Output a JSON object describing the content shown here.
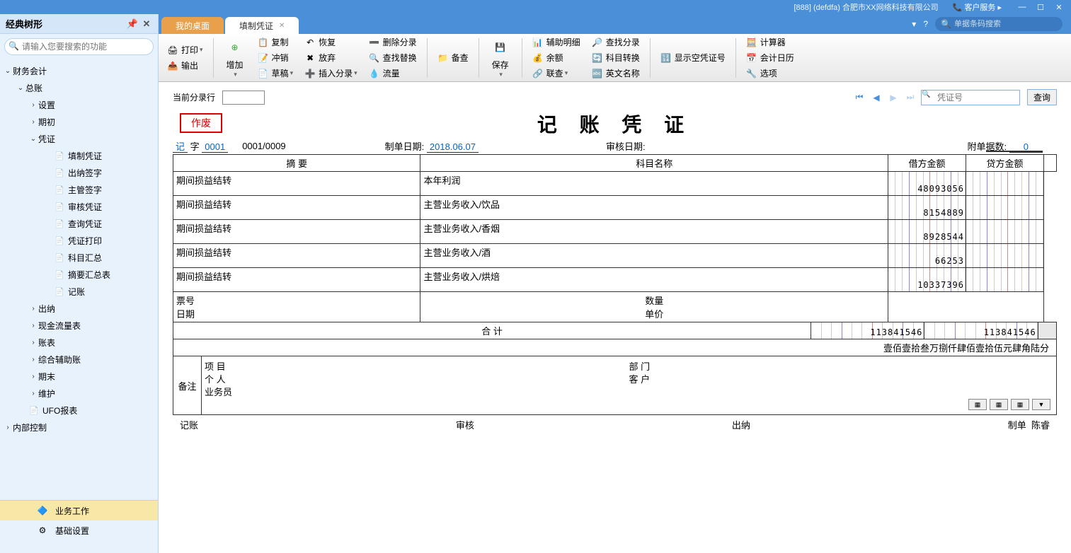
{
  "titlebar": {
    "company": "[888] (defdfa) 合肥市XX网络科技有限公司",
    "service": "客户服务"
  },
  "sidebar": {
    "title": "经典树形",
    "search_placeholder": "请输入您要搜索的功能",
    "bottom_tabs": {
      "business": "业务工作",
      "basic": "基础设置"
    }
  },
  "tree": [
    {
      "label": "财务会计",
      "level": 0,
      "expanded": true,
      "toggle": "⌄",
      "icon": ""
    },
    {
      "label": "总账",
      "level": 1,
      "expanded": true,
      "toggle": "⌄",
      "icon": ""
    },
    {
      "label": "设置",
      "level": 2,
      "expanded": false,
      "toggle": "›",
      "icon": ""
    },
    {
      "label": "期初",
      "level": 2,
      "expanded": false,
      "toggle": "›",
      "icon": ""
    },
    {
      "label": "凭证",
      "level": 2,
      "expanded": true,
      "toggle": "⌄",
      "icon": ""
    },
    {
      "label": "填制凭证",
      "level": 3,
      "toggle": "",
      "icon": "doc"
    },
    {
      "label": "出纳签字",
      "level": 3,
      "toggle": "",
      "icon": "doc"
    },
    {
      "label": "主管签字",
      "level": 3,
      "toggle": "",
      "icon": "doc"
    },
    {
      "label": "审核凭证",
      "level": 3,
      "toggle": "",
      "icon": "doc"
    },
    {
      "label": "查询凭证",
      "level": 3,
      "toggle": "",
      "icon": "doc"
    },
    {
      "label": "凭证打印",
      "level": 3,
      "toggle": "",
      "icon": "doc"
    },
    {
      "label": "科目汇总",
      "level": 3,
      "toggle": "",
      "icon": "doc"
    },
    {
      "label": "摘要汇总表",
      "level": 3,
      "toggle": "",
      "icon": "doc"
    },
    {
      "label": "记账",
      "level": 3,
      "toggle": "",
      "icon": "doc"
    },
    {
      "label": "出纳",
      "level": 2,
      "expanded": false,
      "toggle": "›",
      "icon": ""
    },
    {
      "label": "现金流量表",
      "level": 2,
      "expanded": false,
      "toggle": "›",
      "icon": ""
    },
    {
      "label": "账表",
      "level": 2,
      "expanded": false,
      "toggle": "›",
      "icon": ""
    },
    {
      "label": "综合辅助账",
      "level": 2,
      "expanded": false,
      "toggle": "›",
      "icon": ""
    },
    {
      "label": "期末",
      "level": 2,
      "expanded": false,
      "toggle": "›",
      "icon": ""
    },
    {
      "label": "维护",
      "level": 2,
      "expanded": false,
      "toggle": "›",
      "icon": ""
    },
    {
      "label": "UFO报表",
      "level": 1,
      "expanded": false,
      "toggle": "",
      "icon": "doc"
    },
    {
      "label": "内部控制",
      "level": 0,
      "expanded": false,
      "toggle": "›",
      "icon": ""
    }
  ],
  "tabs": {
    "desktop": "我的桌面",
    "voucher": "填制凭证"
  },
  "tabbar_search_placeholder": "单据条码搜索",
  "toolbar": {
    "print": "打印",
    "output": "输出",
    "add": "增加",
    "copy": "复制",
    "writeoff": "冲销",
    "draft": "草稿",
    "restore": "恢复",
    "abandon": "放弃",
    "insert_entry": "插入分录",
    "delete_entry": "删除分录",
    "find_replace": "查找替换",
    "flow": "流量",
    "backup": "备查",
    "save": "保存",
    "assist_detail": "辅助明细",
    "balance": "余额",
    "joint_query": "联查",
    "find_entry": "查找分录",
    "account_convert": "科目转换",
    "english_name": "英文名称",
    "show_empty": "显示空凭证号",
    "calculator": "计算器",
    "accounting_calendar": "会计日历",
    "options": "选项"
  },
  "voucher_nav": {
    "current_entry": "当前分录行",
    "voucher_no_placeholder": "凭证号",
    "query": "查询"
  },
  "voucher": {
    "invalid": "作废",
    "title": "记 账 凭 证",
    "prefix": "记",
    "char": "字",
    "number": "0001",
    "seq": "0001/0009",
    "date_label": "制单日期:",
    "date": "2018.06.07",
    "audit_date_label": "审核日期:",
    "attach_label": "附单据数:",
    "attach": "0",
    "col_summary": "摘    要",
    "col_account": "科目名称",
    "col_debit": "借方金额",
    "col_credit": "贷方金额",
    "rows": [
      {
        "summary": "期间损益结转",
        "account": "本年利润",
        "debit": "48093056",
        "credit": ""
      },
      {
        "summary": "期间损益结转",
        "account": "主营业务收入/饮品",
        "debit": "8154889",
        "credit": ""
      },
      {
        "summary": "期间损益结转",
        "account": "主营业务收入/香烟",
        "debit": "8928544",
        "credit": ""
      },
      {
        "summary": "期间损益结转",
        "account": "主营业务收入/酒",
        "debit": "66253",
        "credit": ""
      },
      {
        "summary": "期间损益结转",
        "account": "主营业务收入/烘焙",
        "debit": "10337396",
        "credit": ""
      }
    ],
    "ticket_label": "票号",
    "date_row_label": "日期",
    "qty_label": "数量",
    "price_label": "单价",
    "total_label": "合  计",
    "total_debit": "113841546",
    "total_credit": "113841546",
    "amount_text": "壹佰壹拾叁万捌仟肆佰壹拾伍元肆角陆分",
    "remarks_label": "备注",
    "project_label": "项  目",
    "person_label": "个  人",
    "operator_label": "业务员",
    "dept_label": "部  门",
    "customer_label": "客  户",
    "sig_booking": "记账",
    "sig_audit": "审核",
    "sig_cashier": "出纳",
    "sig_make": "制单",
    "sig_maker": "陈睿"
  }
}
